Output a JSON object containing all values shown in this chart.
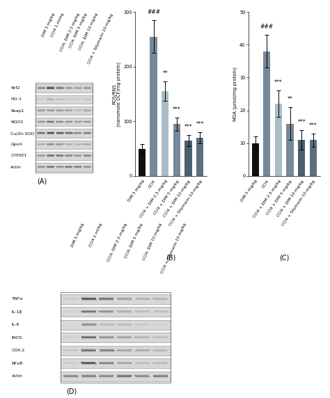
{
  "panel_A": {
    "label": "(A)",
    "bands": [
      "Nrf2",
      "HO-1",
      "Keap1",
      "NQO1",
      "Cu/Zn SOD",
      "Gpx4",
      "CYP2E1",
      "Actin"
    ],
    "n_lanes": 6
  },
  "panel_B": {
    "label": "(B)",
    "ylabel": "ROS/RNS\n(nanomole DCF/mg protein)",
    "categories": [
      "DIM 5 mg/kg",
      "CCl4",
      "CCl4 + DIM 2.5 mg/kg",
      "CCl4 + DIM 5 mg/kg",
      "CCl4 + DIM 10 mg/kg",
      "CCl4 + Silymarin 10 mg/kg"
    ],
    "values": [
      50,
      255,
      155,
      95,
      65,
      70
    ],
    "errors": [
      8,
      30,
      18,
      12,
      10,
      10
    ],
    "colors": [
      "#111111",
      "#778899",
      "#a8bcc5",
      "#778899",
      "#4a6070",
      "#5a7080"
    ],
    "ylim": [
      0,
      300
    ],
    "yticks": [
      0,
      100,
      200,
      300
    ],
    "sig_markers": [
      "",
      "###",
      "**",
      "***",
      "***",
      "***"
    ]
  },
  "panel_C": {
    "label": "(C)",
    "ylabel": "MDA (μmol/mg protein)",
    "categories": [
      "DIM 5 mg/kg",
      "CCl4",
      "CCl4 + DIM 2.5 mg/kg",
      "CCl4 + DIM 5 mg/kg",
      "CCl4 + DIM 10 mg/kg",
      "CCl4 + Silymarin 10 mg/kg"
    ],
    "values": [
      10,
      38,
      22,
      16,
      11,
      11
    ],
    "errors": [
      2,
      5,
      4,
      5,
      3,
      2
    ],
    "colors": [
      "#111111",
      "#778899",
      "#a8bcc5",
      "#778899",
      "#4a6070",
      "#5a7080"
    ],
    "ylim": [
      0,
      50
    ],
    "yticks": [
      0,
      10,
      20,
      30,
      40,
      50
    ],
    "sig_markers": [
      "",
      "###",
      "***",
      "**",
      "***",
      "***"
    ]
  },
  "panel_D": {
    "label": "(D)",
    "bands": [
      "TNFα",
      "IL-1β",
      "IL-6",
      "iNOS",
      "COX-2",
      "NFκB",
      "Actin"
    ],
    "n_lanes": 6
  },
  "col_labels_A": [
    "DIM 5 mg/kg",
    "CCl4 1 ml/kg",
    "CCl4, DIM 2.5 mg/kg",
    "CCl4, DIM 5 mg/kg",
    "CCl4, DIM 10 mg/kg",
    "CCl4 + Silymarin 10 mg/kg"
  ],
  "col_labels_D": [
    "DIM 5 mg/kg",
    "CCl4 1 ml/kg",
    "CCl4, DIM 2.5 mg/kg",
    "CCl4, DIM 5 mg/kg",
    "CCl4, DIM 10 mg/kg",
    "CCl4 + Silymarin 10 mg/kg"
  ],
  "background_color": "#ffffff",
  "text_color": "#000000"
}
